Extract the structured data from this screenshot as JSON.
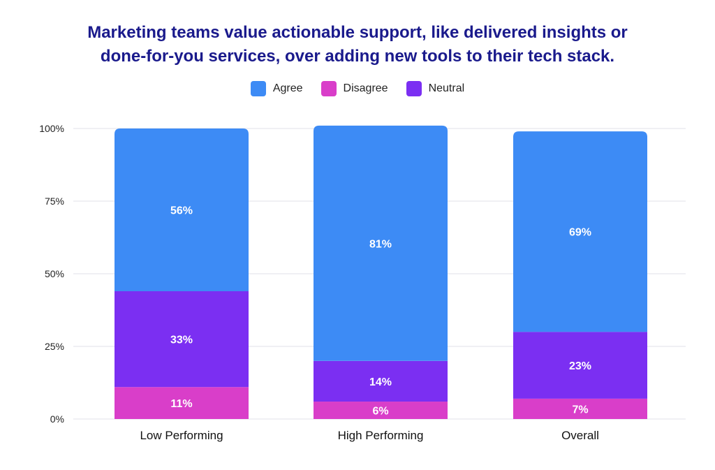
{
  "chart_data": {
    "type": "bar",
    "stacked": true,
    "title": [
      "Marketing teams value actionable support, like delivered insights or",
      "done-for-you services, over adding new tools to their tech stack."
    ],
    "categories": [
      "Low Performing",
      "High Performing",
      "Overall"
    ],
    "series": [
      {
        "name": "Disagree",
        "values": [
          11,
          6,
          7
        ],
        "color": "#d93ec9"
      },
      {
        "name": "Neutral",
        "values": [
          33,
          14,
          23
        ],
        "color": "#7b2ff2"
      },
      {
        "name": "Agree",
        "values": [
          56,
          81,
          69
        ],
        "color": "#3d8bf5"
      }
    ],
    "legend": [
      {
        "name": "Agree",
        "color": "#3d8bf5"
      },
      {
        "name": "Disagree",
        "color": "#d93ec9"
      },
      {
        "name": "Neutral",
        "color": "#7b2ff2"
      }
    ],
    "legend_position": "top-center",
    "yticks": [
      "0%",
      "25%",
      "50%",
      "75%",
      "100%"
    ],
    "ylim": [
      0,
      100
    ],
    "grid": true
  }
}
